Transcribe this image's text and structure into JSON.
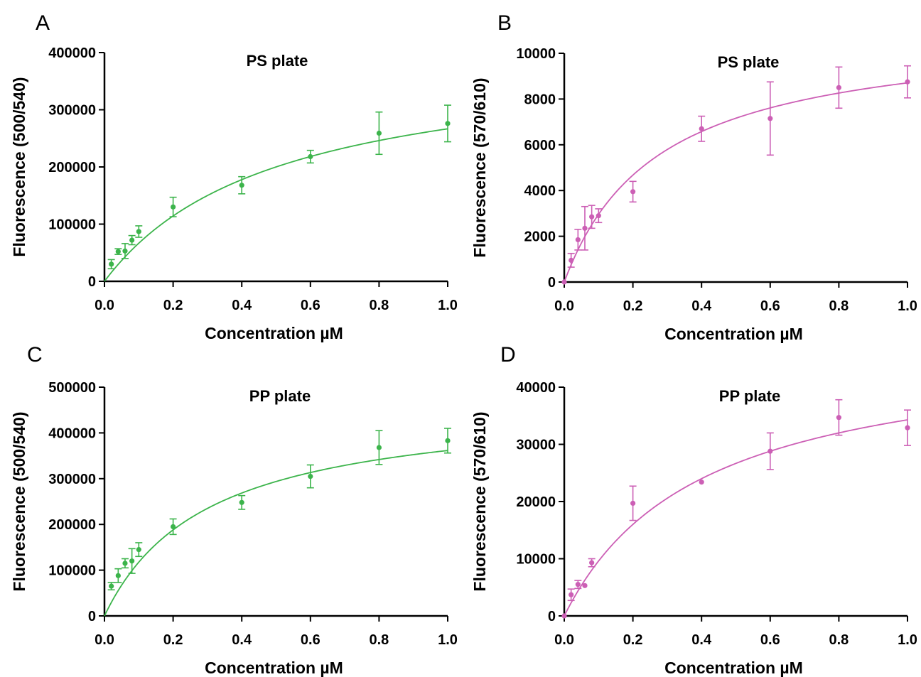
{
  "chart_data": [
    {
      "panel": "A",
      "type": "scatter",
      "title": "PS plate",
      "xlabel": "Concentration µM",
      "ylabel": "Fluorescence (500/540)",
      "xlim": [
        0,
        1.0
      ],
      "ylim": [
        0,
        400000
      ],
      "xticks": [
        "0.0",
        "0.2",
        "0.4",
        "0.6",
        "0.8",
        "1.0"
      ],
      "yticks": [
        "0",
        "100000",
        "200000",
        "300000",
        "400000"
      ],
      "color": "#3cb44b",
      "fit": {
        "model": "one-site saturation",
        "bmax": 400000,
        "kd": 0.5
      },
      "series": [
        {
          "x": [
            0.02,
            0.04,
            0.06,
            0.08,
            0.1,
            0.2,
            0.4,
            0.6,
            0.8,
            1.0
          ],
          "y": [
            30000,
            52000,
            53000,
            72000,
            87000,
            130000,
            168000,
            218000,
            259000,
            276000
          ],
          "err": [
            8000,
            5000,
            13000,
            8000,
            10000,
            17000,
            15000,
            11000,
            37000,
            32000
          ]
        }
      ]
    },
    {
      "panel": "B",
      "type": "scatter",
      "title": "PS plate",
      "xlabel": "Concentration µM",
      "ylabel": "Fluorescence (570/610)",
      "xlim": [
        0,
        1.0
      ],
      "ylim": [
        0,
        10000
      ],
      "xticks": [
        "0.0",
        "0.2",
        "0.4",
        "0.6",
        "0.8",
        "1.0"
      ],
      "yticks": [
        "0",
        "2000",
        "4000",
        "6000",
        "8000",
        "10000"
      ],
      "color": "#cc5fb5",
      "fit": {
        "model": "one-site saturation",
        "bmax": 11100,
        "kd": 0.275
      },
      "series": [
        {
          "x": [
            0.0,
            0.02,
            0.04,
            0.06,
            0.08,
            0.1,
            0.2,
            0.4,
            0.6,
            0.8,
            1.0
          ],
          "y": [
            0,
            950,
            1850,
            2350,
            2850,
            2900,
            3950,
            6700,
            7150,
            8500,
            8750
          ],
          "err": [
            0,
            300,
            450,
            950,
            500,
            300,
            450,
            550,
            1600,
            900,
            700
          ]
        }
      ]
    },
    {
      "panel": "C",
      "type": "scatter",
      "title": "PP plate",
      "xlabel": "Concentration µM",
      "ylabel": "Fluorescence (500/540)",
      "xlim": [
        0,
        1.0
      ],
      "ylim": [
        0,
        500000
      ],
      "xticks": [
        "0.0",
        "0.2",
        "0.4",
        "0.6",
        "0.8",
        "1.0"
      ],
      "yticks": [
        "0",
        "100000",
        "200000",
        "300000",
        "400000",
        "500000"
      ],
      "color": "#3cb44b",
      "fit": {
        "model": "one-site saturation",
        "bmax": 470000,
        "kd": 0.3
      },
      "series": [
        {
          "x": [
            0.02,
            0.04,
            0.06,
            0.08,
            0.1,
            0.2,
            0.4,
            0.6,
            0.8,
            1.0
          ],
          "y": [
            65000,
            88000,
            115000,
            120000,
            145000,
            195000,
            248000,
            305000,
            368000,
            383000
          ],
          "err": [
            8000,
            15000,
            10000,
            27000,
            15000,
            17000,
            15000,
            25000,
            37000,
            27000
          ]
        }
      ]
    },
    {
      "panel": "D",
      "type": "scatter",
      "title": "PP plate",
      "xlabel": "Concentration µM",
      "ylabel": "Fluorescence (570/610)",
      "xlim": [
        0,
        1.0
      ],
      "ylim": [
        0,
        40000
      ],
      "xticks": [
        "0.0",
        "0.2",
        "0.4",
        "0.6",
        "0.8",
        "1.0"
      ],
      "yticks": [
        "0",
        "10000",
        "20000",
        "30000",
        "40000"
      ],
      "color": "#cc5fb5",
      "fit": {
        "model": "one-site saturation",
        "bmax": 48000,
        "kd": 0.4
      },
      "series": [
        {
          "x": [
            0.0,
            0.02,
            0.04,
            0.06,
            0.08,
            0.2,
            0.4,
            0.6,
            0.8,
            1.0
          ],
          "y": [
            0,
            3700,
            5500,
            5300,
            9300,
            19700,
            23400,
            28800,
            34700,
            32900
          ],
          "err": [
            0,
            1000,
            700,
            0,
            700,
            3000,
            0,
            3200,
            3100,
            3100
          ]
        }
      ]
    }
  ]
}
